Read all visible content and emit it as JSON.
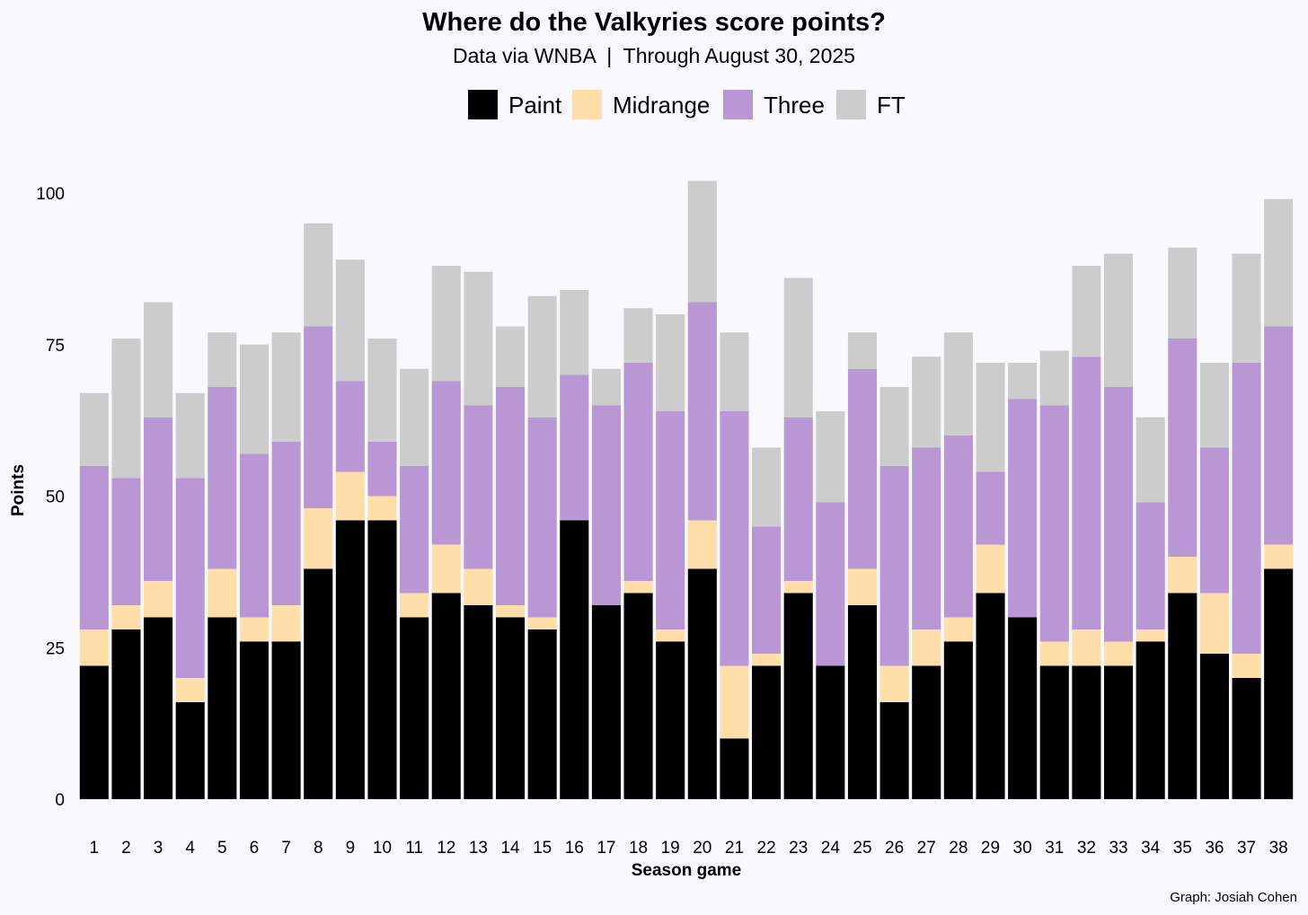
{
  "chart_data": {
    "type": "bar",
    "stacked": true,
    "title": "Where do the Valkyries score points?",
    "subtitle": "Data via WNBA  |  Through August 30, 2025",
    "caption": "Graph: Josiah Cohen",
    "xlabel": "Season game",
    "ylabel": "Points",
    "ylim": [
      0,
      102
    ],
    "yticks": [
      0,
      25,
      50,
      75,
      100
    ],
    "grid": false,
    "legend_position": "top",
    "categories": [
      "1",
      "2",
      "3",
      "4",
      "5",
      "6",
      "7",
      "8",
      "9",
      "10",
      "11",
      "12",
      "13",
      "14",
      "15",
      "16",
      "17",
      "18",
      "19",
      "20",
      "21",
      "22",
      "23",
      "24",
      "25",
      "26",
      "27",
      "28",
      "29",
      "30",
      "31",
      "32",
      "33",
      "34",
      "35",
      "36",
      "37",
      "38"
    ],
    "series": [
      {
        "name": "Paint",
        "color": "#000000",
        "values": [
          22,
          28,
          30,
          16,
          30,
          26,
          26,
          38,
          46,
          46,
          30,
          34,
          32,
          30,
          28,
          46,
          32,
          34,
          26,
          38,
          10,
          22,
          34,
          22,
          32,
          16,
          22,
          26,
          34,
          30,
          22,
          22,
          22,
          26,
          34,
          24,
          20,
          38
        ]
      },
      {
        "name": "Midrange",
        "color": "#ffdeaa",
        "values": [
          6,
          4,
          6,
          4,
          8,
          4,
          6,
          10,
          8,
          4,
          4,
          8,
          6,
          2,
          2,
          0,
          0,
          2,
          2,
          8,
          12,
          2,
          2,
          0,
          6,
          6,
          6,
          4,
          8,
          0,
          4,
          6,
          4,
          2,
          6,
          10,
          4,
          4
        ]
      },
      {
        "name": "Three",
        "color": "#b897d4",
        "values": [
          27,
          21,
          27,
          33,
          30,
          27,
          27,
          30,
          15,
          9,
          21,
          27,
          27,
          36,
          33,
          24,
          33,
          36,
          36,
          36,
          42,
          21,
          27,
          27,
          33,
          33,
          30,
          30,
          12,
          36,
          39,
          45,
          42,
          21,
          36,
          24,
          48,
          36
        ]
      },
      {
        "name": "FT",
        "color": "#cccccc",
        "values": [
          12,
          23,
          19,
          14,
          9,
          18,
          18,
          17,
          20,
          17,
          16,
          19,
          22,
          10,
          20,
          14,
          6,
          9,
          16,
          20,
          13,
          13,
          23,
          15,
          6,
          13,
          15,
          17,
          18,
          6,
          9,
          15,
          22,
          14,
          15,
          14,
          18,
          21
        ]
      }
    ]
  }
}
